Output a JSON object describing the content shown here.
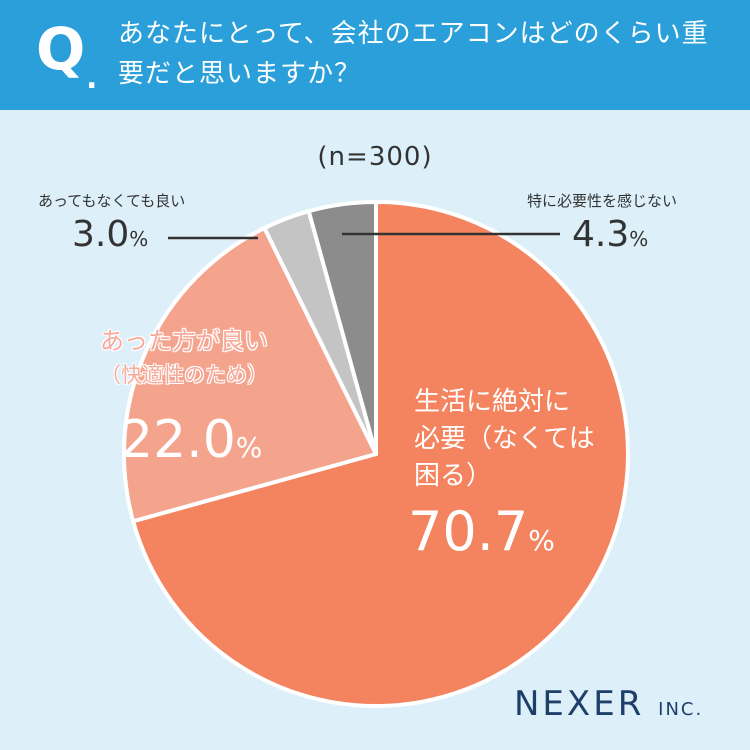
{
  "header": {
    "q_mark": "Q",
    "q_dot": ".",
    "question": "あなたにとって、会社のエアコンはどのくらい重要だと思いますか？"
  },
  "sample": "(n=300)",
  "colors": {
    "header_bg": "#2a9fd9",
    "background": "#ddf0fa",
    "slice_essential": "#f4845f",
    "slice_better": "#f4a48d",
    "slice_either": "#c4c4c4",
    "slice_not": "#8c8c8c"
  },
  "chart_data": {
    "type": "pie",
    "title": "",
    "slices": [
      {
        "label": "生活に絶対に必要（なくては困る）",
        "value": 70.7,
        "color": "#f4845f"
      },
      {
        "label": "あった方が良い（快適性のため）",
        "value": 22.0,
        "color": "#f4a48d"
      },
      {
        "label": "あってもなくても良い",
        "value": 3.0,
        "color": "#c4c4c4"
      },
      {
        "label": "特に必要性を感じない",
        "value": 4.3,
        "color": "#8c8c8c"
      }
    ]
  },
  "labels": {
    "essential": {
      "line1": "生活に絶対に",
      "line2": "必要（なくては",
      "line3": "困る）",
      "value": "70.7",
      "unit": "%"
    },
    "better": {
      "line1": "あった方が良い",
      "line2": "（快適性のため）",
      "value": "22.0",
      "unit": "%"
    },
    "either": {
      "name": "あってもなくても良い",
      "value": "3.0",
      "unit": "%"
    },
    "not_needed": {
      "name": "特に必要性を感じない",
      "value": "4.3",
      "unit": "%"
    }
  },
  "logo": {
    "name": "NEXER",
    "suffix": "INC."
  }
}
